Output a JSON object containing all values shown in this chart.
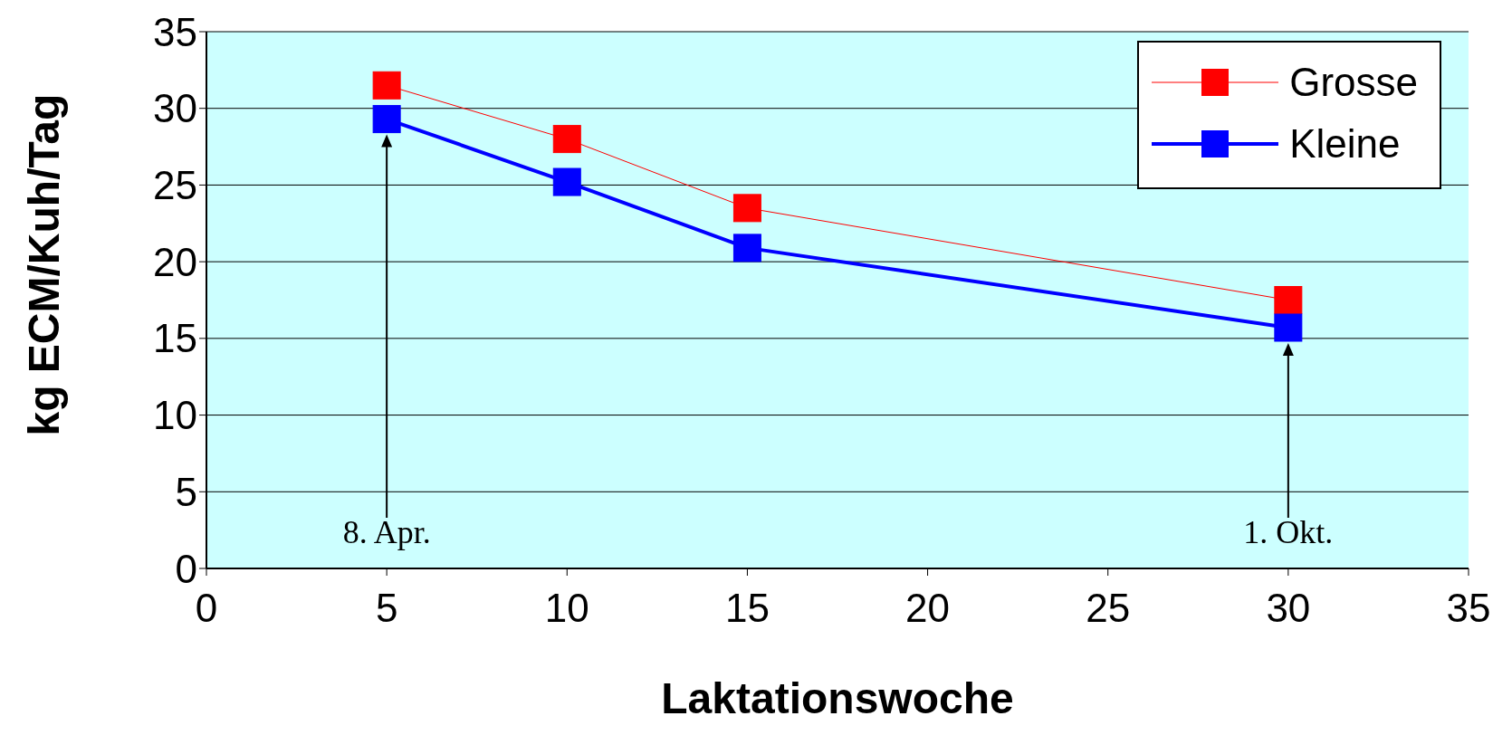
{
  "chart_data": {
    "type": "line",
    "xlabel": "Laktationswoche",
    "ylabel": "kg ECM/Kuh/Tag",
    "x": [
      5,
      10,
      15,
      30
    ],
    "series": [
      {
        "name": "Grosse",
        "color": "#ff0000",
        "values": [
          31.5,
          28.0,
          23.5,
          17.5
        ]
      },
      {
        "name": "Kleine",
        "color": "#0000ff",
        "values": [
          29.3,
          25.2,
          20.9,
          15.7
        ]
      }
    ],
    "xlim": [
      0,
      35
    ],
    "xticks": [
      0,
      5,
      10,
      15,
      20,
      25,
      30,
      35
    ],
    "ylim": [
      0,
      35
    ],
    "yticks": [
      0,
      5,
      10,
      15,
      20,
      25,
      30,
      35
    ],
    "grid": "y",
    "legend": "top right",
    "marker": "square",
    "line_style": "solid",
    "annotations": [
      {
        "text": "8. Apr.",
        "x": 5
      },
      {
        "text": "1. Okt.",
        "x": 30
      }
    ]
  }
}
